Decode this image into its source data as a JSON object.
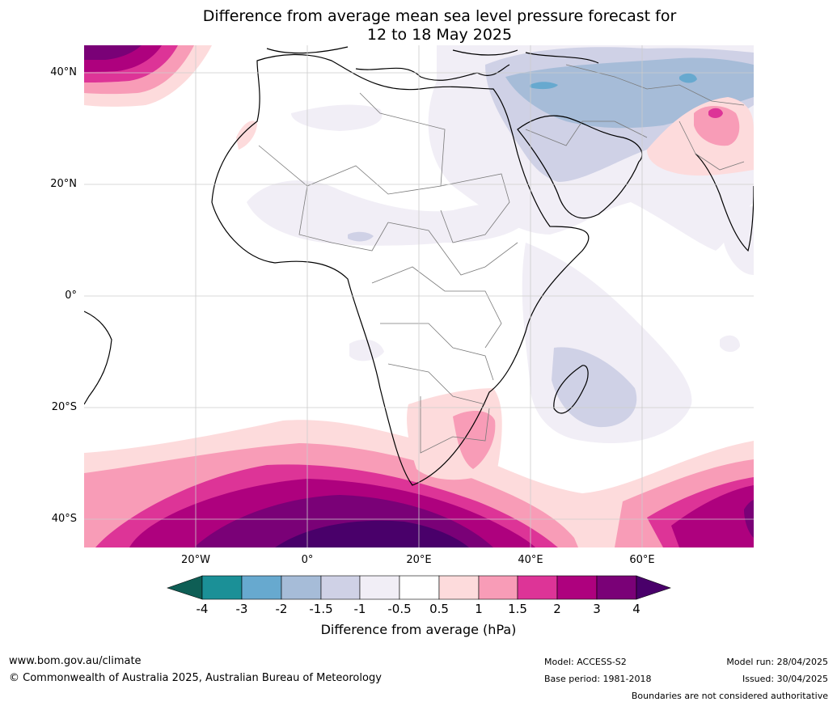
{
  "title_line1": "Difference from average mean sea level pressure forecast for",
  "title_line2": "12 to 18 May 2025",
  "lat_labels": [
    "40°N",
    "20°N",
    "0°",
    "20°S",
    "40°S"
  ],
  "lon_labels": [
    "20°W",
    "0°",
    "20°E",
    "40°E",
    "60°E"
  ],
  "colorbar": {
    "ticks": [
      "-4",
      "-3",
      "-2",
      "-1.5",
      "-1",
      "-0.5",
      "0.5",
      "1",
      "1.5",
      "2",
      "3",
      "4"
    ],
    "title": "Difference from average (hPa)",
    "colors": [
      "#0e5e55",
      "#1b9097",
      "#67a9cf",
      "#a6bcd8",
      "#cfd1e6",
      "#f1eef6",
      "#ffffff",
      "#fddbdc",
      "#f89cb7",
      "#dd3497",
      "#ae017e",
      "#7a0177",
      "#49006a"
    ]
  },
  "footer": {
    "website": "www.bom.gov.au/climate",
    "copyright": "© Commonwealth of Australia 2025, Australian Bureau of Meteorology",
    "model": "Model: ACCESS-S2",
    "base_period": "Base period: 1981-2018",
    "model_run": "Model run: 28/04/2025",
    "issued": "Issued: 30/04/2025",
    "boundaries": "Boundaries are not considered authoritative"
  }
}
